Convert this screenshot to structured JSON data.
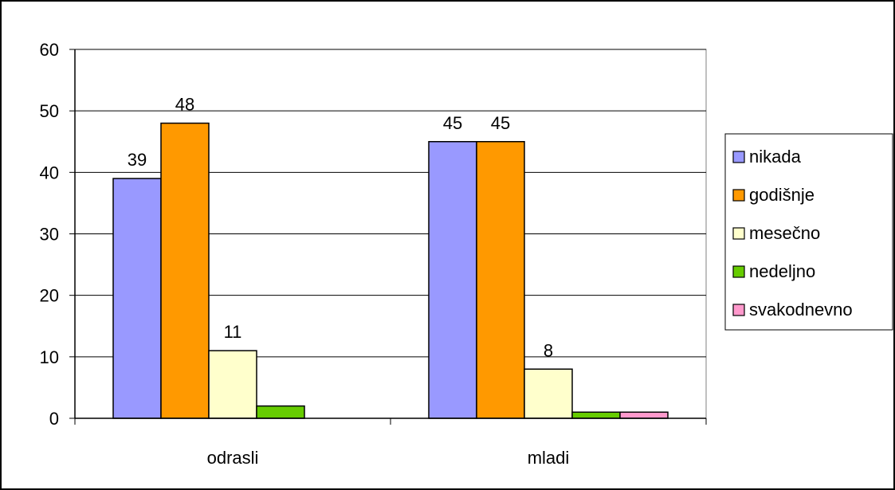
{
  "chart_data": {
    "type": "bar",
    "title": "",
    "xlabel": "",
    "ylabel": "",
    "categories": [
      "odrasli",
      "mladi"
    ],
    "series": [
      {
        "name": "nikada",
        "color": "#9999FF",
        "values": [
          39,
          45
        ],
        "labels": [
          "39",
          "45"
        ]
      },
      {
        "name": "godišnje",
        "color": "#FF9900",
        "values": [
          48,
          45
        ],
        "labels": [
          "48",
          "45"
        ]
      },
      {
        "name": "mesečno",
        "color": "#FFFFCC",
        "values": [
          11,
          8
        ],
        "labels": [
          "11",
          "8"
        ]
      },
      {
        "name": "nedeljno",
        "color": "#66CC00",
        "values": [
          2,
          1
        ],
        "labels": [
          "",
          ""
        ]
      },
      {
        "name": "svakodnevno",
        "color": "#FF99CC",
        "values": [
          0,
          1
        ],
        "labels": [
          "",
          ""
        ]
      }
    ],
    "ylim": [
      0,
      60
    ],
    "yticks": [
      0,
      10,
      20,
      30,
      40,
      50,
      60
    ],
    "grid": true,
    "legend_position": "right"
  }
}
